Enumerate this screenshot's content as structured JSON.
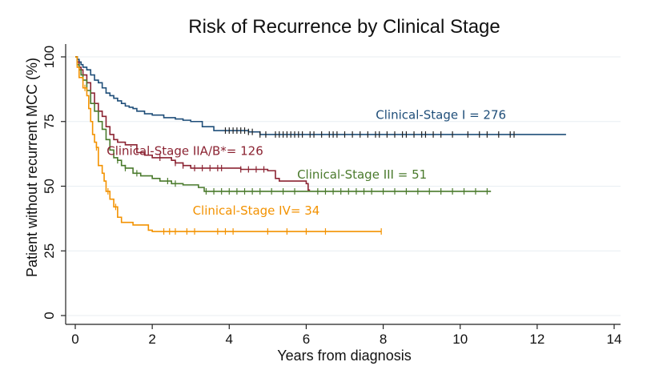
{
  "chart_data": {
    "type": "line",
    "subtype": "kaplan-meier step curves",
    "title": "Risk of Recurrence by Clinical Stage",
    "xlabel": "Years from diagnosis",
    "ylabel": "Patient without recurrent MCC (%)",
    "xlim": [
      0,
      14
    ],
    "ylim": [
      0,
      100
    ],
    "x_ticks": [
      0,
      2,
      4,
      6,
      8,
      10,
      12,
      14
    ],
    "y_ticks": [
      0,
      25,
      50,
      75,
      100
    ],
    "grid": "horizontal",
    "legend": "inline labels",
    "series": [
      {
        "name": "Clinical-Stage I = 276",
        "color": "#1f4e79",
        "points": [
          [
            0,
            100
          ],
          [
            0.05,
            99
          ],
          [
            0.1,
            98
          ],
          [
            0.15,
            97
          ],
          [
            0.2,
            96
          ],
          [
            0.3,
            95
          ],
          [
            0.4,
            93
          ],
          [
            0.5,
            91
          ],
          [
            0.6,
            90
          ],
          [
            0.7,
            88
          ],
          [
            0.8,
            86
          ],
          [
            0.9,
            85
          ],
          [
            1.0,
            84
          ],
          [
            1.1,
            83
          ],
          [
            1.2,
            82
          ],
          [
            1.3,
            81
          ],
          [
            1.4,
            80.5
          ],
          [
            1.5,
            80
          ],
          [
            1.6,
            79
          ],
          [
            1.8,
            78
          ],
          [
            2.0,
            77.5
          ],
          [
            2.3,
            76.5
          ],
          [
            2.6,
            76
          ],
          [
            2.8,
            75.5
          ],
          [
            3.0,
            75
          ],
          [
            3.3,
            73
          ],
          [
            3.6,
            71.5
          ],
          [
            4.0,
            71.5
          ],
          [
            4.5,
            71
          ],
          [
            4.8,
            70
          ],
          [
            12.75,
            70
          ]
        ],
        "censored_x": [
          3.9,
          4.0,
          4.1,
          4.2,
          4.3,
          4.4,
          4.5,
          4.6,
          4.8,
          4.95,
          5.2,
          5.3,
          5.4,
          5.5,
          5.6,
          5.7,
          5.8,
          5.9,
          6.1,
          6.2,
          6.4,
          6.6,
          6.7,
          6.8,
          7.0,
          7.2,
          7.4,
          7.6,
          7.8,
          7.9,
          8.1,
          8.3,
          8.5,
          8.6,
          8.8,
          9.0,
          9.1,
          9.3,
          9.5,
          9.8,
          10.2,
          10.5,
          10.7,
          11.0,
          11.3,
          11.4
        ]
      },
      {
        "name": "Clinical-Stage IIA/B*= 126",
        "color": "#8b2332",
        "points": [
          [
            0,
            100
          ],
          [
            0.05,
            98
          ],
          [
            0.1,
            96
          ],
          [
            0.15,
            95
          ],
          [
            0.2,
            93
          ],
          [
            0.3,
            90
          ],
          [
            0.4,
            86
          ],
          [
            0.5,
            82
          ],
          [
            0.6,
            79
          ],
          [
            0.7,
            77
          ],
          [
            0.8,
            73
          ],
          [
            0.9,
            70
          ],
          [
            1.0,
            68
          ],
          [
            1.1,
            67
          ],
          [
            1.3,
            66
          ],
          [
            1.6,
            63
          ],
          [
            1.8,
            62
          ],
          [
            2.0,
            61
          ],
          [
            2.5,
            60
          ],
          [
            2.6,
            59
          ],
          [
            2.8,
            58
          ],
          [
            3.0,
            57
          ],
          [
            4.0,
            57
          ],
          [
            4.3,
            56.5
          ],
          [
            5.0,
            56
          ],
          [
            5.2,
            53
          ],
          [
            5.3,
            52
          ],
          [
            6.0,
            51
          ],
          [
            6.05,
            48.5
          ],
          [
            6.1,
            48.5
          ]
        ],
        "censored_x": [
          2.2,
          2.6,
          2.8,
          3.1,
          3.3,
          3.5,
          3.7,
          3.8,
          4.3,
          4.5,
          4.7,
          4.9
        ]
      },
      {
        "name": "Clinical-Stage III = 51",
        "color": "#4a7a2c",
        "points": [
          [
            0,
            100
          ],
          [
            0.05,
            97
          ],
          [
            0.1,
            95
          ],
          [
            0.15,
            93
          ],
          [
            0.2,
            91
          ],
          [
            0.3,
            87
          ],
          [
            0.4,
            82
          ],
          [
            0.5,
            79
          ],
          [
            0.6,
            75
          ],
          [
            0.7,
            72
          ],
          [
            0.8,
            68
          ],
          [
            0.9,
            64
          ],
          [
            1.0,
            61
          ],
          [
            1.1,
            60
          ],
          [
            1.2,
            58
          ],
          [
            1.3,
            57
          ],
          [
            1.5,
            55
          ],
          [
            1.7,
            54
          ],
          [
            2.0,
            53
          ],
          [
            2.2,
            52
          ],
          [
            2.5,
            51
          ],
          [
            2.8,
            50.5
          ],
          [
            3.2,
            49.5
          ],
          [
            3.35,
            48
          ],
          [
            3.6,
            48
          ],
          [
            10.8,
            48
          ]
        ],
        "censored_x": [
          1.1,
          1.3,
          1.6,
          2.4,
          2.6,
          3.4,
          3.6,
          3.8,
          4.0,
          4.2,
          4.4,
          4.6,
          4.8,
          5.1,
          5.4,
          5.7,
          6.3,
          6.5,
          6.7,
          6.9,
          7.1,
          7.3,
          7.5,
          7.7,
          8.0,
          8.3,
          8.6,
          8.9,
          9.2,
          9.5,
          9.8,
          10.1,
          10.4,
          10.7
        ]
      },
      {
        "name": "Clinical-Stage IV= 34",
        "color": "#f39200",
        "points": [
          [
            0,
            100
          ],
          [
            0.05,
            96
          ],
          [
            0.1,
            92
          ],
          [
            0.2,
            88
          ],
          [
            0.3,
            85
          ],
          [
            0.35,
            80
          ],
          [
            0.4,
            75
          ],
          [
            0.45,
            70
          ],
          [
            0.5,
            67
          ],
          [
            0.55,
            65
          ],
          [
            0.6,
            58
          ],
          [
            0.7,
            55
          ],
          [
            0.75,
            52
          ],
          [
            0.8,
            48
          ],
          [
            0.9,
            45
          ],
          [
            1.0,
            42
          ],
          [
            1.1,
            38
          ],
          [
            1.2,
            36
          ],
          [
            1.4,
            36
          ],
          [
            1.5,
            35
          ],
          [
            1.8,
            35
          ],
          [
            1.9,
            33
          ],
          [
            2.0,
            32.5
          ],
          [
            7.95,
            32.5
          ]
        ],
        "censored_x": [
          0.25,
          0.55,
          0.85,
          1.05,
          2.3,
          2.45,
          2.6,
          2.9,
          3.1,
          3.7,
          3.9,
          4.1,
          5.0,
          5.5,
          6.0,
          6.5,
          7.95
        ]
      }
    ],
    "labels": [
      {
        "text": "Clinical-Stage I = 276",
        "series": 0,
        "x": 9.5,
        "y": 76
      },
      {
        "text": "Clinical-Stage IIA/B*= 126",
        "series": 1,
        "x": 2.85,
        "y": 62
      },
      {
        "text": "Clinical-Stage III = 51",
        "series": 2,
        "x": 7.45,
        "y": 53
      },
      {
        "text": "Clinical-Stage IV= 34",
        "series": 3,
        "x": 4.7,
        "y": 39
      }
    ]
  }
}
